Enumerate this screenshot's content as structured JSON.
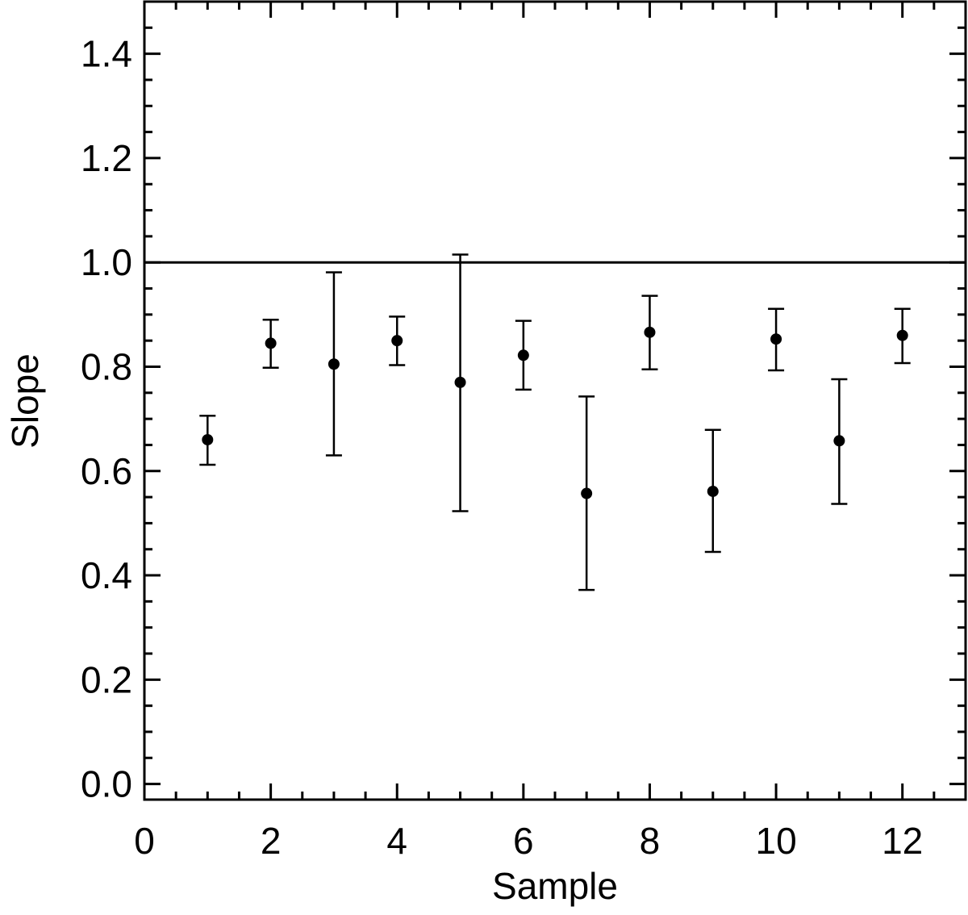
{
  "chart_data": {
    "type": "scatter",
    "title": "",
    "xlabel": "Sample",
    "ylabel": "Slope",
    "xlim": [
      0,
      13
    ],
    "ylim": [
      -0.03,
      1.5
    ],
    "xticks": [
      0,
      2,
      4,
      6,
      8,
      10,
      12
    ],
    "xtick_labels": [
      "0",
      "2",
      "4",
      "6",
      "8",
      "10",
      "12"
    ],
    "yticks": [
      0.0,
      0.2,
      0.4,
      0.6,
      0.8,
      1.0,
      1.2,
      1.4
    ],
    "ytick_labels": [
      "0.0",
      "0.2",
      "0.4",
      "0.6",
      "0.8",
      "1.0",
      "1.2",
      "1.4"
    ],
    "reference_line": {
      "y": 1.0
    },
    "grid": false,
    "series": [
      {
        "marker": "filled-circle",
        "color": "#000000",
        "x": [
          1,
          2,
          3,
          4,
          5,
          6,
          7,
          8,
          9,
          10,
          11,
          12
        ],
        "y": [
          0.66,
          0.845,
          0.805,
          0.85,
          0.77,
          0.822,
          0.557,
          0.866,
          0.561,
          0.853,
          0.658,
          0.86
        ],
        "y_low": [
          0.612,
          0.798,
          0.63,
          0.803,
          0.523,
          0.756,
          0.372,
          0.795,
          0.445,
          0.793,
          0.537,
          0.807
        ],
        "y_high": [
          0.706,
          0.89,
          0.981,
          0.896,
          1.015,
          0.888,
          0.743,
          0.936,
          0.679,
          0.911,
          0.776,
          0.911
        ]
      }
    ]
  }
}
